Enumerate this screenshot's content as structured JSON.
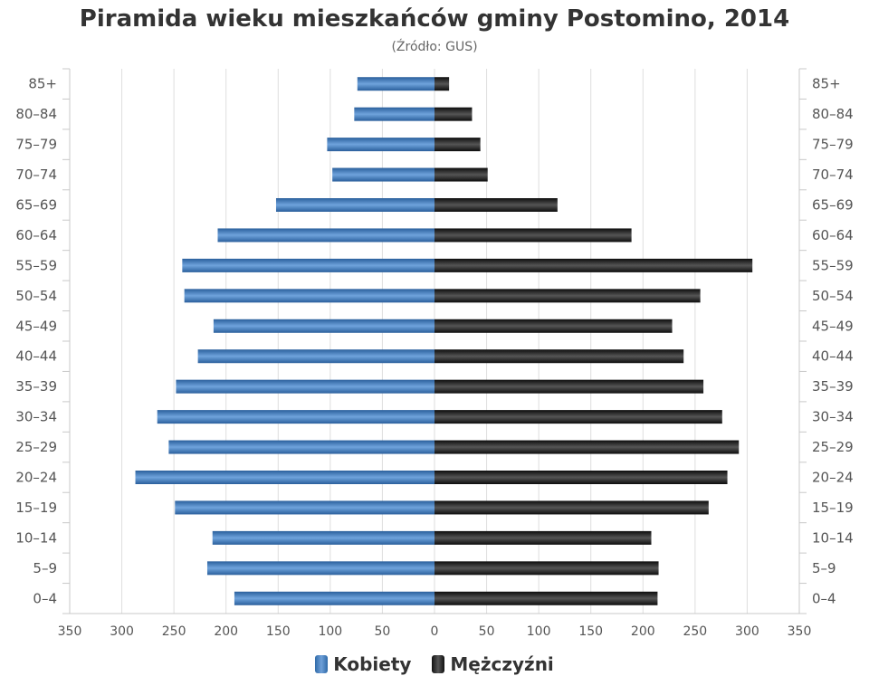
{
  "chart_data": {
    "type": "bar",
    "title": "Piramida wieku mieszkańców gminy Postomino, 2014",
    "subtitle": "(Źródło: GUS)",
    "categories": [
      "85+",
      "80–84",
      "75–79",
      "70–74",
      "65–69",
      "60–64",
      "55–59",
      "50–54",
      "45–49",
      "40–44",
      "35–39",
      "30–34",
      "25–29",
      "20–24",
      "15–19",
      "10–14",
      "5–9",
      "0–4"
    ],
    "series": [
      {
        "name": "Kobiety",
        "values": [
          74,
          77,
          103,
          98,
          152,
          208,
          242,
          240,
          212,
          227,
          248,
          266,
          255,
          287,
          249,
          213,
          218,
          192
        ]
      },
      {
        "name": "Mężczyźni",
        "values": [
          14,
          36,
          44,
          51,
          118,
          189,
          305,
          255,
          228,
          239,
          258,
          276,
          292,
          281,
          263,
          208,
          215,
          214
        ]
      }
    ],
    "xticks": [
      "350",
      "300",
      "250",
      "200",
      "150",
      "100",
      "50",
      "0",
      "50",
      "100",
      "150",
      "200",
      "250",
      "300",
      "350"
    ],
    "xlim": [
      -350,
      350
    ],
    "grid": true,
    "legend_position": "bottom-center",
    "colors": {
      "Kobiety": "#3f7cc2",
      "Mężczyźni": "#222222"
    }
  }
}
